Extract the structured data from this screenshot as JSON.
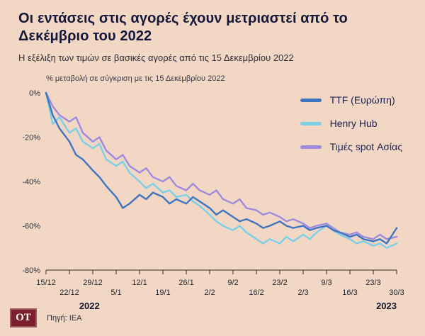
{
  "page": {
    "background": "#f2d8c4",
    "title": "Οι εντάσεις στις αγορές έχουν μετριαστεί από το Δεκέμβριο του 2022",
    "subtitle": "Η εξέλιξη των τιμών σε βασικές αγορές από τις 15 Δεκεμβρίου 2022"
  },
  "chart_data": {
    "type": "line",
    "title": "Οι εντάσεις στις αγορές έχουν μετριαστεί από το Δεκέμβριο του 2022",
    "note": "% μεταβολή σε σύγκριση με τις 15 Δεκεμβρίου 2022",
    "x_unit": "days since 15/12/2022",
    "ylim": [
      -80,
      0
    ],
    "grid": false,
    "legend_position": "top-right",
    "y_ticks": [
      "0%",
      "-20%",
      "-40%",
      "-60%",
      "-80%"
    ],
    "x": [
      0,
      2,
      4,
      7,
      9,
      11,
      14,
      16,
      18,
      21,
      23,
      25,
      28,
      30,
      32,
      35,
      37,
      39,
      42,
      44,
      46,
      49,
      51,
      53,
      56,
      58,
      60,
      63,
      65,
      67,
      70,
      72,
      74,
      77,
      79,
      81,
      84,
      86,
      88,
      91,
      93,
      95,
      98,
      100,
      102,
      105
    ],
    "series": [
      {
        "name": "TTF (Ευρώπη)",
        "color": "#3f74c0",
        "values": [
          0,
          -10,
          -16,
          -22,
          -28,
          -30,
          -35,
          -38,
          -42,
          -47,
          -52,
          -50,
          -46,
          -48,
          -45,
          -47,
          -50,
          -48,
          -50,
          -47,
          -49,
          -52,
          -55,
          -53,
          -56,
          -58,
          -57,
          -59,
          -61,
          -60,
          -58,
          -60,
          -61,
          -60,
          -62,
          -61,
          -60,
          -62,
          -63,
          -65,
          -64,
          -66,
          -67,
          -66,
          -68,
          -61
        ]
      },
      {
        "name": "Henry Hub",
        "color": "#7bcfe6",
        "values": [
          0,
          -14,
          -11,
          -18,
          -16,
          -22,
          -25,
          -23,
          -30,
          -33,
          -31,
          -36,
          -40,
          -43,
          -41,
          -45,
          -44,
          -47,
          -46,
          -49,
          -51,
          -55,
          -58,
          -60,
          -62,
          -60,
          -63,
          -66,
          -68,
          -66,
          -68,
          -65,
          -67,
          -64,
          -66,
          -63,
          -60,
          -62,
          -64,
          -66,
          -68,
          -67,
          -69,
          -68,
          -70,
          -68
        ]
      },
      {
        "name": "Τιμές spot Ασίας",
        "color": "#a08ae0",
        "values": [
          0,
          -6,
          -10,
          -13,
          -11,
          -18,
          -22,
          -20,
          -26,
          -30,
          -28,
          -33,
          -36,
          -34,
          -38,
          -40,
          -38,
          -42,
          -44,
          -41,
          -44,
          -46,
          -44,
          -48,
          -50,
          -48,
          -52,
          -53,
          -55,
          -54,
          -56,
          -58,
          -57,
          -59,
          -61,
          -60,
          -59,
          -61,
          -63,
          -64,
          -63,
          -65,
          -66,
          -64,
          -66,
          -65
        ]
      }
    ],
    "x_ticks": [
      {
        "label": "15/12",
        "day": 0,
        "row": 0
      },
      {
        "label": "22/12",
        "day": 7,
        "row": 1
      },
      {
        "label": "29/12",
        "day": 14,
        "row": 0
      },
      {
        "label": "5/1",
        "day": 21,
        "row": 1
      },
      {
        "label": "12/1",
        "day": 28,
        "row": 0
      },
      {
        "label": "19/1",
        "day": 35,
        "row": 1
      },
      {
        "label": "26/1",
        "day": 42,
        "row": 0
      },
      {
        "label": "2/2",
        "day": 49,
        "row": 1
      },
      {
        "label": "9/2",
        "day": 56,
        "row": 0
      },
      {
        "label": "16/2",
        "day": 63,
        "row": 1
      },
      {
        "label": "23/2",
        "day": 70,
        "row": 0
      },
      {
        "label": "2/3",
        "day": 77,
        "row": 1
      },
      {
        "label": "9/3",
        "day": 84,
        "row": 0
      },
      {
        "label": "16/3",
        "day": 91,
        "row": 1
      },
      {
        "label": "23/3",
        "day": 98,
        "row": 0
      },
      {
        "label": "30/3",
        "day": 105,
        "row": 1
      }
    ],
    "year_labels": [
      {
        "label": "2022",
        "day": 13,
        "align": "middle"
      },
      {
        "label": "2023",
        "day": 105,
        "align": "end"
      }
    ]
  },
  "footer": {
    "logo": "OT",
    "logo_bg": "#7c1f2d",
    "source": "Πηγή: IEA"
  }
}
